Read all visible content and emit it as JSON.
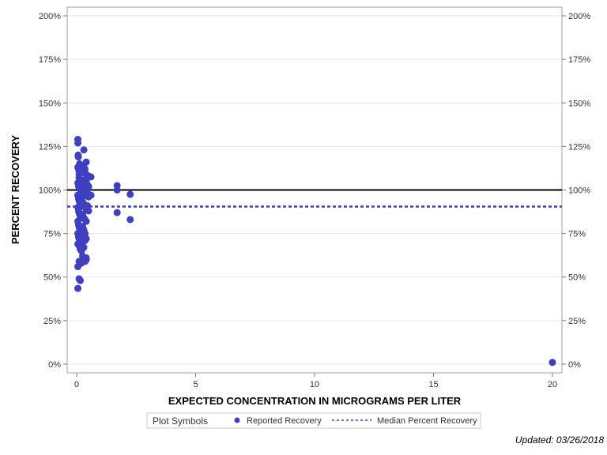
{
  "chart_data": {
    "type": "scatter",
    "xlabel": "EXPECTED CONCENTRATION IN MICROGRAMS PER LITER",
    "ylabel": "PERCENT RECOVERY",
    "xlim": [
      -0.4,
      20.4
    ],
    "ylim": [
      -5,
      205
    ],
    "x_ticks": [
      0,
      5,
      10,
      15,
      20
    ],
    "y_ticks": [
      0,
      25,
      50,
      75,
      100,
      125,
      150,
      175,
      200
    ],
    "y_tick_suffix": "%",
    "grid": true,
    "reference_line": {
      "y": 100,
      "color": "#000000"
    },
    "median_line": {
      "y": 90.5,
      "color": "#3b3bc4",
      "style": "dashed"
    },
    "series": [
      {
        "name": "Reported Recovery",
        "color": "#3f3fbf",
        "points": [
          [
            0.05,
            129
          ],
          [
            0.05,
            127
          ],
          [
            0.06,
            120
          ],
          [
            0.07,
            119
          ],
          [
            0.05,
            113
          ],
          [
            0.08,
            112
          ],
          [
            0.1,
            111
          ],
          [
            0.12,
            115
          ],
          [
            0.15,
            114
          ],
          [
            0.1,
            109
          ],
          [
            0.2,
            112
          ],
          [
            0.25,
            110
          ],
          [
            0.3,
            113
          ],
          [
            0.35,
            112
          ],
          [
            0.4,
            109
          ],
          [
            0.3,
            123
          ],
          [
            0.4,
            116
          ],
          [
            0.5,
            108
          ],
          [
            0.6,
            107.5
          ],
          [
            0.1,
            107
          ],
          [
            0.15,
            106
          ],
          [
            0.2,
            105
          ],
          [
            0.25,
            104
          ],
          [
            0.3,
            103
          ],
          [
            0.35,
            106
          ],
          [
            0.4,
            105
          ],
          [
            0.45,
            103
          ],
          [
            0.05,
            104
          ],
          [
            0.08,
            102
          ],
          [
            0.12,
            101
          ],
          [
            0.15,
            100
          ],
          [
            0.18,
            99
          ],
          [
            0.2,
            98
          ],
          [
            0.25,
            101
          ],
          [
            0.3,
            100
          ],
          [
            0.35,
            99
          ],
          [
            0.4,
            98
          ],
          [
            0.45,
            97
          ],
          [
            0.5,
            96
          ],
          [
            0.6,
            97
          ],
          [
            0.05,
            97
          ],
          [
            0.08,
            95
          ],
          [
            0.1,
            94
          ],
          [
            0.12,
            93
          ],
          [
            0.15,
            92
          ],
          [
            0.2,
            91
          ],
          [
            0.25,
            93
          ],
          [
            0.3,
            92
          ],
          [
            0.35,
            90
          ],
          [
            0.4,
            89
          ],
          [
            0.45,
            91
          ],
          [
            0.5,
            88
          ],
          [
            0.05,
            90
          ],
          [
            0.08,
            88
          ],
          [
            0.1,
            87
          ],
          [
            0.12,
            86
          ],
          [
            0.15,
            85
          ],
          [
            0.2,
            84
          ],
          [
            0.25,
            86
          ],
          [
            0.3,
            84
          ],
          [
            0.35,
            83
          ],
          [
            0.4,
            82
          ],
          [
            0.05,
            82
          ],
          [
            0.08,
            80
          ],
          [
            0.1,
            79
          ],
          [
            0.12,
            78
          ],
          [
            0.15,
            77
          ],
          [
            0.2,
            76
          ],
          [
            0.25,
            79
          ],
          [
            0.3,
            77
          ],
          [
            0.35,
            75
          ],
          [
            0.05,
            75
          ],
          [
            0.08,
            73
          ],
          [
            0.1,
            72
          ],
          [
            0.15,
            71
          ],
          [
            0.2,
            70
          ],
          [
            0.3,
            73
          ],
          [
            0.4,
            72
          ],
          [
            0.35,
            71
          ],
          [
            0.05,
            69
          ],
          [
            0.1,
            68
          ],
          [
            0.15,
            66
          ],
          [
            0.2,
            65
          ],
          [
            0.25,
            68
          ],
          [
            0.3,
            67
          ],
          [
            0.35,
            59
          ],
          [
            0.4,
            61
          ],
          [
            0.4,
            60
          ],
          [
            0.1,
            59
          ],
          [
            0.05,
            56
          ],
          [
            0.1,
            49
          ],
          [
            0.15,
            48
          ],
          [
            0.05,
            43.5
          ],
          [
            0.2,
            58
          ],
          [
            0.25,
            62
          ],
          [
            0.3,
            74
          ],
          [
            0.15,
            95
          ],
          [
            0.25,
            96
          ],
          [
            0.45,
            100
          ],
          [
            0.5,
            102
          ],
          [
            1.7,
            102.5
          ],
          [
            1.7,
            100
          ],
          [
            2.25,
            97.5
          ],
          [
            1.7,
            87
          ],
          [
            2.25,
            83
          ],
          [
            20,
            1
          ]
        ]
      }
    ],
    "legend": {
      "title": "Plot Symbols",
      "placement": "bottom-center",
      "entries": [
        "Reported Recovery",
        "Median Percent Recovery"
      ]
    },
    "footnote": "Updated: 03/26/2018"
  }
}
